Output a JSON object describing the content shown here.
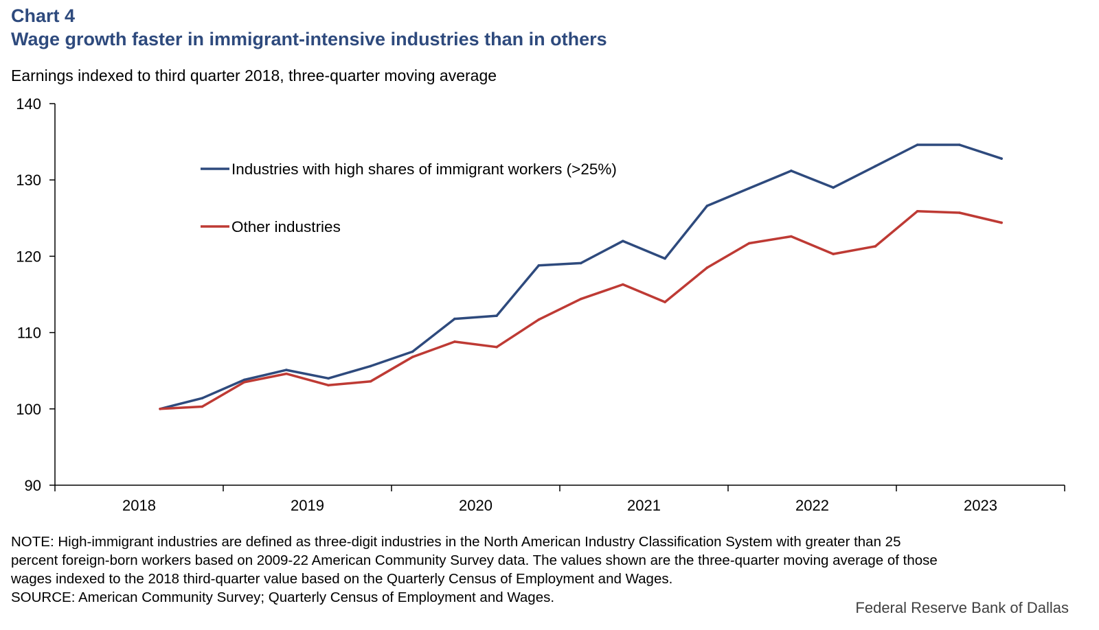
{
  "header": {
    "chart_label": "Chart 4",
    "title": "Wage growth faster in immigrant-intensive industries than in others",
    "subtitle": "Earnings indexed to third quarter 2018, three-quarter moving average"
  },
  "notes": {
    "lines": [
      "NOTE: High-immigrant industries are defined as three-digit industries in the North American Industry Classification System with greater than 25",
      "percent foreign-born workers based on 2009-22 American Community Survey data. The values shown are the three-quarter moving average of those",
      "wages indexed to the 2018 third-quarter value based on the Quarterly Census of Employment and Wages.",
      "SOURCE: American Community Survey; Quarterly Census of Employment and Wages."
    ],
    "credit": "Federal Reserve Bank of Dallas"
  },
  "colors": {
    "high_immigrant": "#2e4a7d",
    "other": "#be3a34",
    "title": "#2e4a7d"
  },
  "chart_data": {
    "type": "line",
    "xlabel": "",
    "ylabel": "",
    "ylim": [
      90,
      140
    ],
    "yticks": [
      90,
      100,
      110,
      120,
      130,
      140
    ],
    "year_labels": [
      "2018",
      "2019",
      "2020",
      "2021",
      "2022",
      "2023"
    ],
    "x": [
      "2018 Q3",
      "2018 Q4",
      "2019 Q1",
      "2019 Q2",
      "2019 Q3",
      "2019 Q4",
      "2020 Q1",
      "2020 Q2",
      "2020 Q3",
      "2020 Q4",
      "2021 Q1",
      "2021 Q2",
      "2021 Q3",
      "2021 Q4",
      "2022 Q1",
      "2022 Q2",
      "2022 Q3",
      "2022 Q4",
      "2023 Q1",
      "2023 Q2",
      "2023 Q3"
    ],
    "grid": false,
    "legend_position": "top-left inside plot",
    "series": [
      {
        "name": "Industries with high shares of immigrant workers (>25%)",
        "color": "#2e4a7d",
        "values": [
          100.0,
          101.4,
          103.8,
          105.1,
          104.0,
          105.6,
          107.5,
          111.8,
          112.2,
          118.8,
          119.1,
          122.0,
          119.7,
          126.6,
          128.9,
          131.2,
          129.0,
          131.8,
          134.6,
          134.6,
          132.8
        ]
      },
      {
        "name": "Other industries",
        "color": "#be3a34",
        "values": [
          100.0,
          100.3,
          103.5,
          104.6,
          103.1,
          103.6,
          106.8,
          108.8,
          108.1,
          111.7,
          114.4,
          116.3,
          114.0,
          118.5,
          121.7,
          122.6,
          120.3,
          121.3,
          125.9,
          125.7,
          124.4
        ]
      }
    ]
  }
}
